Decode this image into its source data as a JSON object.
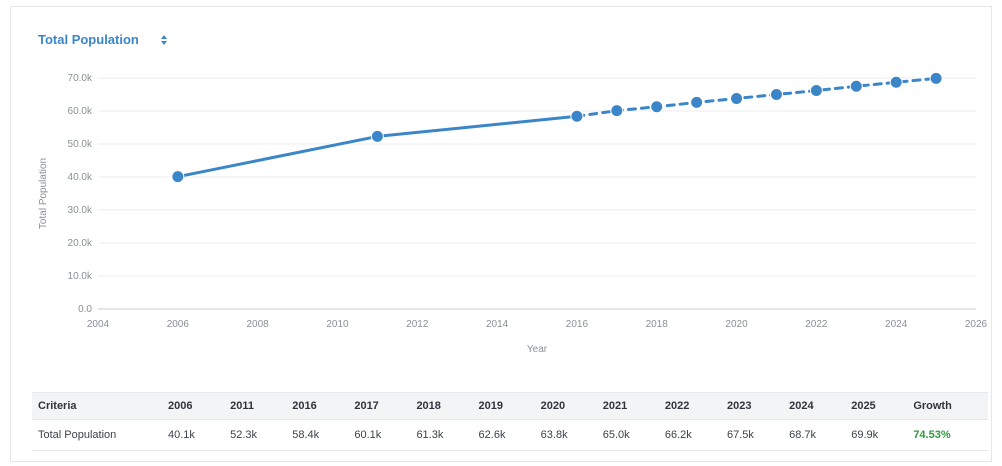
{
  "header": {
    "title": "Total Population"
  },
  "chart_data": {
    "type": "line",
    "title": "Total Population",
    "xlabel": "Year",
    "ylabel": "Total Population",
    "xlim": [
      2004,
      2026
    ],
    "ylim": [
      0,
      70000
    ],
    "x_ticks": [
      2004,
      2006,
      2008,
      2010,
      2012,
      2014,
      2016,
      2018,
      2020,
      2022,
      2024,
      2026
    ],
    "y_ticks": [
      0,
      10000,
      20000,
      30000,
      40000,
      50000,
      60000,
      70000
    ],
    "y_tick_labels": [
      "0.0",
      "10.0k",
      "20.0k",
      "30.0k",
      "40.0k",
      "50.0k",
      "60.0k",
      "70.0k"
    ],
    "grid": true,
    "color": "#3a86c8",
    "series": [
      {
        "style": "solid",
        "points": [
          {
            "x": 2006,
            "y": 40100
          },
          {
            "x": 2011,
            "y": 52300
          },
          {
            "x": 2016,
            "y": 58400
          }
        ]
      },
      {
        "style": "dashed",
        "points": [
          {
            "x": 2016,
            "y": 58400
          },
          {
            "x": 2017,
            "y": 60100
          },
          {
            "x": 2018,
            "y": 61300
          },
          {
            "x": 2019,
            "y": 62600
          },
          {
            "x": 2020,
            "y": 63800
          },
          {
            "x": 2021,
            "y": 65000
          },
          {
            "x": 2022,
            "y": 66200
          },
          {
            "x": 2023,
            "y": 67500
          },
          {
            "x": 2024,
            "y": 68700
          },
          {
            "x": 2025,
            "y": 69900
          }
        ]
      }
    ]
  },
  "table": {
    "headers": [
      "Criteria",
      "2006",
      "2011",
      "2016",
      "2017",
      "2018",
      "2019",
      "2020",
      "2021",
      "2022",
      "2023",
      "2024",
      "2025",
      "Growth"
    ],
    "row": [
      "Total Population",
      "40.1k",
      "52.3k",
      "58.4k",
      "60.1k",
      "61.3k",
      "62.6k",
      "63.8k",
      "65.0k",
      "66.2k",
      "67.5k",
      "68.7k",
      "69.9k",
      "74.53%"
    ],
    "growth_color": "#2e9a3a"
  }
}
